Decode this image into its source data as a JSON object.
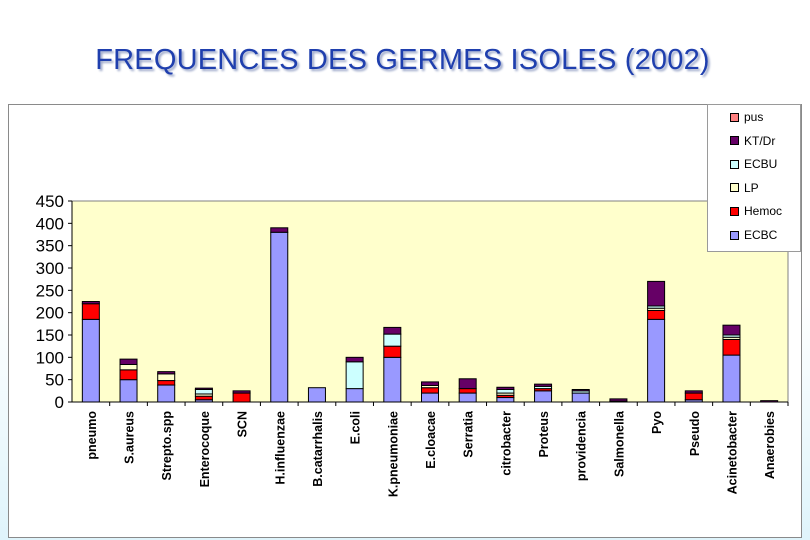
{
  "title": "FREQUENCES DES GERMES ISOLES  (2002)",
  "colors": {
    "ECBC": "#9999ff",
    "Hemoc": "#ff0000",
    "LP": "#ffffcc",
    "ECBU": "#ccffff",
    "KT/Dr": "#660066",
    "pus": "#ff8080",
    "plot_background": "#ffffcc"
  },
  "chart_data": {
    "type": "bar",
    "stacked": true,
    "categories": [
      "pneumo",
      "S.aureus",
      "Strepto.spp",
      "Enterocoque",
      "SCN",
      "H.influenzae",
      "B.catarrhalis",
      "E.coli",
      "K.pneumoniae",
      "E.cloacae",
      "Serratia",
      "citrobacter",
      "Proteus",
      "providencia",
      "Salmonella",
      "Pyo",
      "Pseudo",
      "Acinetobacter",
      "Anaerobies"
    ],
    "series": [
      {
        "name": "ECBC",
        "values": [
          185,
          50,
          38,
          5,
          0,
          380,
          32,
          30,
          100,
          20,
          20,
          10,
          25,
          20,
          2,
          185,
          5,
          105,
          0
        ]
      },
      {
        "name": "Hemoc",
        "values": [
          35,
          22,
          10,
          8,
          20,
          0,
          0,
          0,
          25,
          12,
          10,
          5,
          5,
          0,
          0,
          20,
          15,
          35,
          0
        ]
      },
      {
        "name": "LP",
        "values": [
          0,
          12,
          15,
          5,
          0,
          0,
          0,
          0,
          0,
          5,
          0,
          5,
          0,
          0,
          0,
          5,
          0,
          5,
          0
        ]
      },
      {
        "name": "ECBU",
        "values": [
          0,
          0,
          0,
          10,
          0,
          0,
          0,
          60,
          27,
          0,
          0,
          8,
          5,
          5,
          0,
          5,
          0,
          5,
          0
        ]
      },
      {
        "name": "KT/Dr",
        "values": [
          5,
          12,
          5,
          3,
          5,
          10,
          0,
          10,
          15,
          8,
          22,
          5,
          5,
          3,
          5,
          55,
          5,
          22,
          3
        ]
      },
      {
        "name": "pus",
        "values": [
          0,
          0,
          0,
          0,
          0,
          0,
          0,
          0,
          0,
          0,
          0,
          0,
          0,
          0,
          0,
          0,
          0,
          0,
          0
        ]
      }
    ],
    "legend_order": [
      "pus",
      "KT/Dr",
      "ECBU",
      "LP",
      "Hemoc",
      "ECBC"
    ],
    "yticks": [
      0,
      50,
      100,
      150,
      200,
      250,
      300,
      350,
      400,
      450
    ],
    "ylim": [
      0,
      450
    ],
    "xlabel": "",
    "ylabel": "",
    "grid": false,
    "legend_position": "top-right"
  }
}
